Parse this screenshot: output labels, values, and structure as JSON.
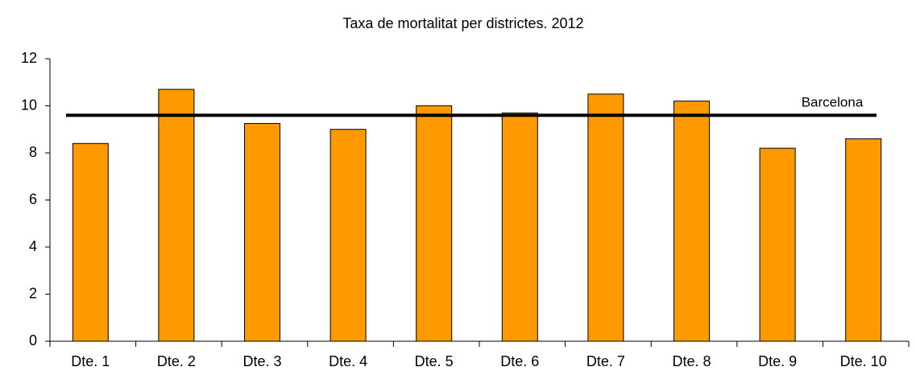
{
  "chart_data": {
    "type": "bar",
    "title": "Taxa de mortalitat per districtes. 2012",
    "categories": [
      "Dte. 1",
      "Dte. 2",
      "Dte. 3",
      "Dte. 4",
      "Dte. 5",
      "Dte. 6",
      "Dte. 7",
      "Dte. 8",
      "Dte. 9",
      "Dte. 10"
    ],
    "values": [
      8.4,
      10.7,
      9.25,
      9.0,
      10.0,
      9.7,
      10.5,
      10.2,
      8.2,
      8.6
    ],
    "color": "#ff9900",
    "reference_line": {
      "name": "Barcelona",
      "value": 9.6,
      "color": "#000000"
    },
    "ylim": [
      0,
      12
    ],
    "yticks": [
      0,
      2,
      4,
      6,
      8,
      10,
      12
    ],
    "grid": false
  }
}
